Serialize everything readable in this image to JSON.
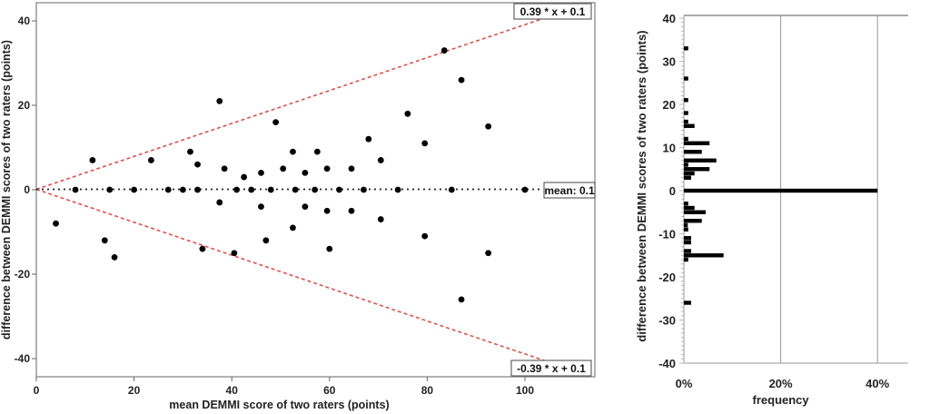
{
  "chart_data": [
    {
      "type": "scatter",
      "xlabel": "mean DEMMI score of two raters (points)",
      "ylabel": "difference between DEMMI scores of two raters (points)",
      "xlim": [
        0,
        114
      ],
      "ylim": [
        -44,
        44
      ],
      "xticks": [
        0,
        20,
        40,
        60,
        80,
        100
      ],
      "yticks": [
        -40,
        -20,
        0,
        20,
        40
      ],
      "grid": false,
      "colors": {
        "points": "#000000",
        "limits": "#d9534f",
        "mean": "#222222"
      },
      "mean_line": {
        "value": 0.1,
        "label": "mean: 0.1"
      },
      "limit_lines": [
        {
          "slope": 0.39,
          "intercept": 0.1,
          "label": "0.39 * x + 0.1"
        },
        {
          "slope": -0.39,
          "intercept": 0.1,
          "label": "-0.39 * x + 0.1"
        }
      ],
      "points": [
        [
          4,
          -8
        ],
        [
          8,
          0
        ],
        [
          11.5,
          7
        ],
        [
          14,
          -12
        ],
        [
          15,
          0
        ],
        [
          16,
          -16
        ],
        [
          20,
          0
        ],
        [
          23.5,
          7
        ],
        [
          27,
          0
        ],
        [
          30,
          0
        ],
        [
          31.5,
          9
        ],
        [
          33,
          6
        ],
        [
          33,
          0
        ],
        [
          34,
          -14
        ],
        [
          37.5,
          21
        ],
        [
          37.5,
          -3
        ],
        [
          38.5,
          5
        ],
        [
          40.5,
          -15
        ],
        [
          41,
          0
        ],
        [
          42.5,
          3
        ],
        [
          44,
          0
        ],
        [
          46,
          4
        ],
        [
          46,
          -4
        ],
        [
          47,
          -12
        ],
        [
          48,
          0
        ],
        [
          49,
          16
        ],
        [
          50.5,
          5
        ],
        [
          52.5,
          9
        ],
        [
          52.5,
          -9
        ],
        [
          53,
          0
        ],
        [
          55,
          4
        ],
        [
          55,
          -4
        ],
        [
          57,
          0
        ],
        [
          57.5,
          9
        ],
        [
          59.5,
          5
        ],
        [
          59.5,
          -5
        ],
        [
          60,
          -14
        ],
        [
          62,
          0
        ],
        [
          64.5,
          5
        ],
        [
          64.5,
          -5
        ],
        [
          67,
          0
        ],
        [
          68,
          12
        ],
        [
          70.5,
          7
        ],
        [
          70.5,
          -7
        ],
        [
          74,
          0
        ],
        [
          76,
          18
        ],
        [
          79.5,
          11
        ],
        [
          79.5,
          -11
        ],
        [
          83.5,
          33
        ],
        [
          85,
          0
        ],
        [
          87,
          26
        ],
        [
          87,
          -26
        ],
        [
          92.5,
          15
        ],
        [
          92.5,
          -15
        ],
        [
          100,
          0
        ]
      ]
    },
    {
      "type": "bar",
      "orientation": "horizontal",
      "xlabel": "frequency",
      "ylabel": "difference between DEMMI scores of two raters (points)",
      "xlim": [
        0,
        45
      ],
      "ylim": [
        -40,
        40
      ],
      "xticks": [
        "0%",
        "20%",
        "40%"
      ],
      "xtick_values": [
        0,
        20,
        40
      ],
      "yticks": [
        -40,
        -30,
        -20,
        -10,
        0,
        10,
        20,
        30,
        40
      ],
      "grid": "vertical",
      "categories": [
        33,
        26,
        21,
        18,
        16,
        15,
        12,
        11,
        9,
        7,
        6,
        5,
        4,
        3,
        0,
        -3,
        -4,
        -5,
        -7,
        -8,
        -9,
        -11,
        -12,
        -14,
        -15,
        -16,
        -26
      ],
      "values": [
        0.9,
        0.9,
        0.9,
        0.9,
        0.9,
        2.2,
        0.9,
        5.3,
        3.7,
        6.7,
        0.9,
        5.3,
        2.2,
        1.5,
        40,
        0.9,
        2.2,
        4.5,
        3.7,
        0.8,
        0.9,
        1.5,
        1.5,
        1.5,
        8.2,
        0.9,
        1.5
      ]
    }
  ]
}
